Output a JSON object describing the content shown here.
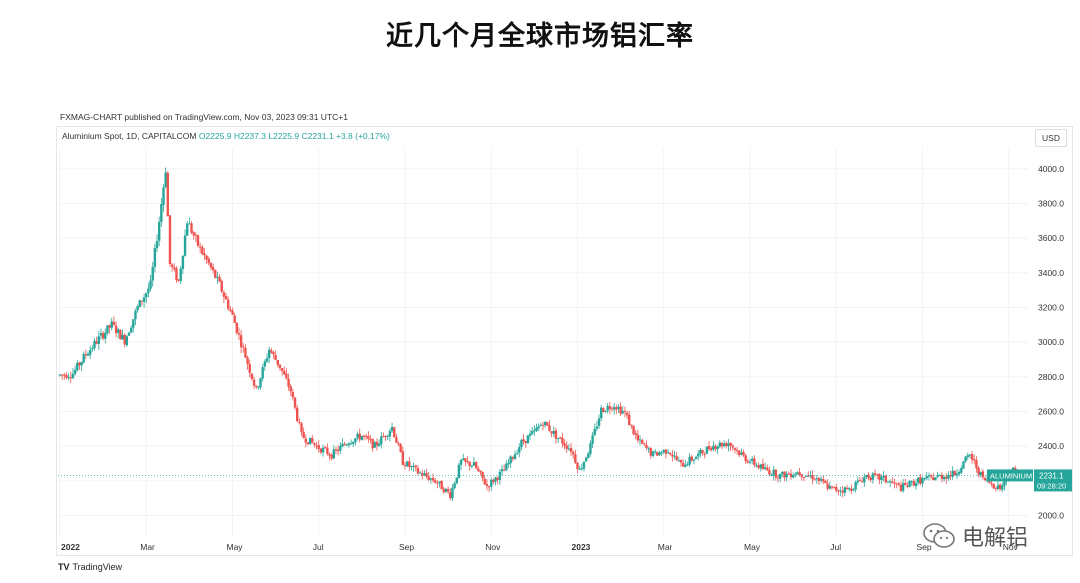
{
  "title": "近几个月全球市场铝汇率",
  "published": "FXMAG-CHART published on TradingView.com, Nov 03, 2023 09:31 UTC+1",
  "ohlc": {
    "symbol": "Aluminium Spot, 1D, CAPITALCOM",
    "o": "O2225.9",
    "h": "H2237.3",
    "l": "L2225.9",
    "c": "C2231.1",
    "change": "+3.8 (+0.17%)"
  },
  "currency": "USD",
  "footer": "TradingView",
  "watermark": "电解铝",
  "colors": {
    "up": "#26a69a",
    "down": "#ef5350",
    "tag": "#26a69a"
  },
  "chart_data": {
    "type": "candlestick",
    "instrument": "ALUMINIUM",
    "last_price": "2231.1",
    "countdown": "09:28:20",
    "y_ticks": [
      2000,
      2200,
      2400,
      2600,
      2800,
      3000,
      3200,
      3400,
      3600,
      3800,
      4000
    ],
    "y_tick_labels": [
      "2000.0",
      "2200.0",
      "2400.0",
      "2600.0",
      "2800.0",
      "3000.0",
      "3200.0",
      "3400.0",
      "3600.0",
      "3800.0",
      "4000.0"
    ],
    "ylim": [
      1870,
      4120
    ],
    "x_ticks": [
      {
        "label": "2022",
        "month": 0,
        "bold": true
      },
      {
        "label": "Mar",
        "month": 2
      },
      {
        "label": "May",
        "month": 4
      },
      {
        "label": "Jul",
        "month": 6
      },
      {
        "label": "Sep",
        "month": 8
      },
      {
        "label": "Nov",
        "month": 10
      },
      {
        "label": "2023",
        "month": 12,
        "bold": true
      },
      {
        "label": "Mar",
        "month": 14
      },
      {
        "label": "May",
        "month": 16
      },
      {
        "label": "Jul",
        "month": 18
      },
      {
        "label": "Sep",
        "month": 20
      },
      {
        "label": "Nov",
        "month": 22
      }
    ],
    "xlim_months": [
      0,
      22.4
    ],
    "price_path": [
      [
        0.0,
        2810
      ],
      [
        0.3,
        2820
      ],
      [
        0.6,
        2930
      ],
      [
        0.9,
        3020
      ],
      [
        1.2,
        3100
      ],
      [
        1.5,
        3010
      ],
      [
        1.8,
        3200
      ],
      [
        2.1,
        3330
      ],
      [
        2.3,
        3700
      ],
      [
        2.45,
        4000
      ],
      [
        2.55,
        3450
      ],
      [
        2.75,
        3350
      ],
      [
        2.95,
        3700
      ],
      [
        3.2,
        3560
      ],
      [
        3.45,
        3450
      ],
      [
        3.7,
        3330
      ],
      [
        4.0,
        3150
      ],
      [
        4.3,
        2920
      ],
      [
        4.55,
        2720
      ],
      [
        4.85,
        2960
      ],
      [
        5.1,
        2860
      ],
      [
        5.35,
        2720
      ],
      [
        5.6,
        2460
      ],
      [
        5.95,
        2400
      ],
      [
        6.3,
        2350
      ],
      [
        6.7,
        2430
      ],
      [
        7.0,
        2460
      ],
      [
        7.3,
        2400
      ],
      [
        7.7,
        2510
      ],
      [
        7.95,
        2310
      ],
      [
        8.3,
        2250
      ],
      [
        8.7,
        2200
      ],
      [
        9.05,
        2120
      ],
      [
        9.3,
        2310
      ],
      [
        9.6,
        2290
      ],
      [
        9.9,
        2170
      ],
      [
        10.3,
        2260
      ],
      [
        10.7,
        2420
      ],
      [
        11.0,
        2480
      ],
      [
        11.2,
        2540
      ],
      [
        11.5,
        2460
      ],
      [
        11.85,
        2380
      ],
      [
        12.05,
        2260
      ],
      [
        12.3,
        2400
      ],
      [
        12.55,
        2610
      ],
      [
        12.85,
        2640
      ],
      [
        13.1,
        2590
      ],
      [
        13.4,
        2430
      ],
      [
        13.75,
        2350
      ],
      [
        14.1,
        2380
      ],
      [
        14.4,
        2290
      ],
      [
        14.75,
        2340
      ],
      [
        15.1,
        2400
      ],
      [
        15.5,
        2420
      ],
      [
        15.9,
        2330
      ],
      [
        16.3,
        2270
      ],
      [
        16.7,
        2230
      ],
      [
        17.1,
        2250
      ],
      [
        17.5,
        2220
      ],
      [
        17.9,
        2150
      ],
      [
        18.3,
        2150
      ],
      [
        18.7,
        2230
      ],
      [
        19.1,
        2210
      ],
      [
        19.5,
        2160
      ],
      [
        19.9,
        2200
      ],
      [
        20.3,
        2220
      ],
      [
        20.75,
        2240
      ],
      [
        21.1,
        2350
      ],
      [
        21.4,
        2210
      ],
      [
        21.8,
        2160
      ],
      [
        22.1,
        2260
      ],
      [
        22.25,
        2231
      ]
    ]
  }
}
